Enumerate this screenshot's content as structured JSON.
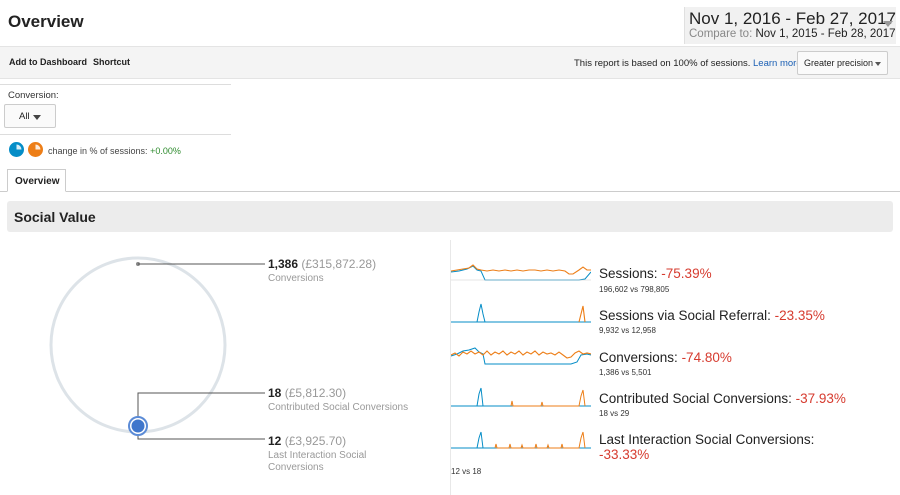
{
  "header": {
    "title": "Overview",
    "date_range": "Nov 1, 2016 - Feb 27, 2017",
    "compare_label": "Compare to:",
    "compare_range": "Nov 1, 2015 - Feb 28, 2017"
  },
  "toolbar": {
    "add_dashboard": "Add to Dashboard",
    "shortcut": "Shortcut",
    "sampling_note": "This report is based on 100% of sessions.",
    "learn_more": "Learn more",
    "precision": "Greater precision"
  },
  "filter": {
    "conversion_label": "Conversion:",
    "conversion_value": "All"
  },
  "segments": {
    "change_label": "change in % of sessions:",
    "change_value": "+0.00%",
    "colors": [
      "#058dc7",
      "#ed7e17"
    ]
  },
  "tabs": [
    {
      "label": "Overview"
    }
  ],
  "section": {
    "title": "Social Value"
  },
  "summary": {
    "conversions": {
      "count": "1,386",
      "value": "(£315,872.28)",
      "label": "Conversions"
    },
    "contributed": {
      "count": "18",
      "value": "(£5,812.30)",
      "label": "Contributed Social Conversions"
    },
    "last_interaction": {
      "count": "12",
      "value": "(£3,925.70)",
      "label": "Last Interaction Social Conversions"
    }
  },
  "metrics": [
    {
      "label": "Sessions:",
      "change": "-75.39%",
      "compare": "196,602 vs 798,805"
    },
    {
      "label": "Sessions via Social Referral:",
      "change": "-23.35%",
      "compare": "9,932 vs 12,958"
    },
    {
      "label": "Conversions:",
      "change": "-74.80%",
      "compare": "1,386 vs 5,501"
    },
    {
      "label": "Contributed Social Conversions:",
      "change": "-37.93%",
      "compare": "18 vs 29"
    },
    {
      "label": "Last Interaction Social Conversions:",
      "change": "-33.33%",
      "compare": "12 vs 18"
    }
  ],
  "colors": {
    "accent_blue": "#058dc7",
    "accent_orange": "#ed7e17",
    "negative": "#d63b2f",
    "positive": "#2e8b2e"
  }
}
